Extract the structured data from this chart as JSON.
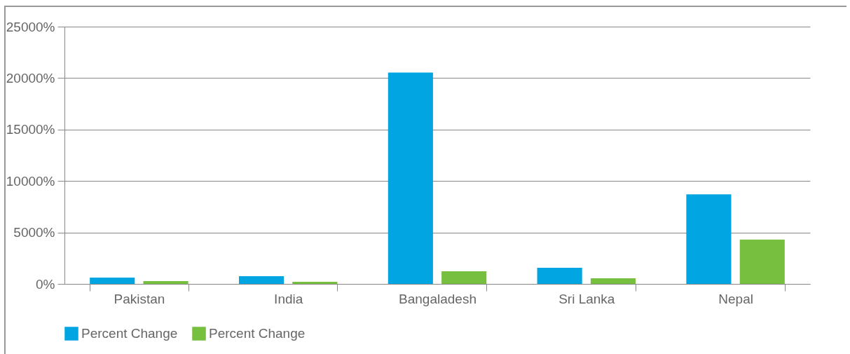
{
  "chart_data": {
    "type": "bar",
    "categories": [
      "Pakistan",
      "India",
      "Bangaladesh",
      "Sri Lanka",
      "Nepal"
    ],
    "series": [
      {
        "name": "Percent Change",
        "color": "#00a5e1",
        "values": [
          610,
          750,
          20540,
          1570,
          8700
        ]
      },
      {
        "name": "Percent Change",
        "color": "#77bf3f",
        "values": [
          270,
          200,
          1220,
          540,
          4310
        ]
      }
    ],
    "ylim": [
      0,
      25000
    ],
    "yticks": [
      {
        "value": 0,
        "label": "0%"
      },
      {
        "value": 5000,
        "label": "5000%"
      },
      {
        "value": 10000,
        "label": "10000%"
      },
      {
        "value": 15000,
        "label": "15000%"
      },
      {
        "value": 20000,
        "label": "20000%"
      },
      {
        "value": 25000,
        "label": "25000%"
      }
    ],
    "grid": "y",
    "legend": "bottom"
  }
}
